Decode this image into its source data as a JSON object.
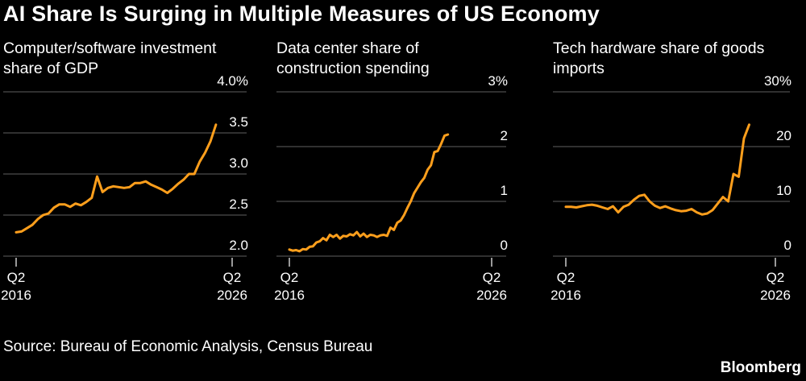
{
  "title": "AI Share Is Surging in Multiple Measures of US Economy",
  "source": "Source: Bureau of Economic Analysis, Census Bureau",
  "brand": "Bloomberg",
  "colors": {
    "background": "#000000",
    "line": "#ff9f1c",
    "grid": "#4d4d4d",
    "text": "#ffffff"
  },
  "chart_data": [
    {
      "type": "line",
      "title_lines": [
        "Computer/software investment",
        "share of GDP"
      ],
      "x_start": 2016.25,
      "x_step": 0.25,
      "x_ticks": [
        {
          "x": 2016.25,
          "label": [
            "Q2",
            "2016"
          ]
        },
        {
          "x": 2026.25,
          "label": [
            "Q2",
            "2026"
          ]
        }
      ],
      "ylim": [
        2.0,
        4.0
      ],
      "y_ticks": [
        {
          "v": 2.0,
          "label": "2.0"
        },
        {
          "v": 2.5,
          "label": "2.5"
        },
        {
          "v": 3.0,
          "label": "3.0"
        },
        {
          "v": 3.5,
          "label": "3.5"
        },
        {
          "v": 4.0,
          "label": "4.0%"
        }
      ],
      "grid": true,
      "series": [
        {
          "values": [
            2.29,
            2.3,
            2.34,
            2.38,
            2.45,
            2.5,
            2.52,
            2.59,
            2.63,
            2.63,
            2.6,
            2.64,
            2.62,
            2.66,
            2.71,
            2.97,
            2.78,
            2.83,
            2.85,
            2.84,
            2.83,
            2.84,
            2.89,
            2.89,
            2.91,
            2.87,
            2.84,
            2.81,
            2.77,
            2.82,
            2.88,
            2.93,
            3.0,
            3.0,
            3.15,
            3.26,
            3.4,
            3.6
          ]
        }
      ]
    },
    {
      "type": "line",
      "title_lines": [
        "Data center share of",
        "construction spending"
      ],
      "x_start": 2016.25,
      "x_step": 0.1667,
      "x_ticks": [
        {
          "x": 2016.25,
          "label": [
            "Q2",
            "2016"
          ]
        },
        {
          "x": 2026.25,
          "label": [
            "Q2",
            "2026"
          ]
        }
      ],
      "ylim": [
        0,
        3
      ],
      "y_ticks": [
        {
          "v": 0,
          "label": "0"
        },
        {
          "v": 1,
          "label": "1"
        },
        {
          "v": 2,
          "label": "2"
        },
        {
          "v": 3,
          "label": "3%"
        }
      ],
      "grid": true,
      "series": [
        {
          "values": [
            0.12,
            0.1,
            0.11,
            0.09,
            0.13,
            0.12,
            0.17,
            0.18,
            0.25,
            0.27,
            0.33,
            0.29,
            0.39,
            0.35,
            0.39,
            0.32,
            0.37,
            0.36,
            0.4,
            0.38,
            0.44,
            0.36,
            0.41,
            0.35,
            0.39,
            0.38,
            0.35,
            0.38,
            0.39,
            0.37,
            0.52,
            0.48,
            0.61,
            0.65,
            0.75,
            0.88,
            1.0,
            1.15,
            1.25,
            1.35,
            1.43,
            1.58,
            1.66,
            1.9,
            1.92,
            2.05,
            2.2,
            2.22
          ]
        }
      ]
    },
    {
      "type": "line",
      "title_lines": [
        "Tech hardware share of goods",
        "imports"
      ],
      "x_start": 2016.25,
      "x_step": 0.25,
      "x_ticks": [
        {
          "x": 2016.25,
          "label": [
            "Q2",
            "2016"
          ]
        },
        {
          "x": 2026.25,
          "label": [
            "Q2",
            "2026"
          ]
        }
      ],
      "ylim": [
        0,
        30
      ],
      "y_ticks": [
        {
          "v": 0,
          "label": "0"
        },
        {
          "v": 10,
          "label": "10"
        },
        {
          "v": 20,
          "label": "20"
        },
        {
          "v": 30,
          "label": "30%"
        }
      ],
      "grid": true,
      "series": [
        {
          "values": [
            9.0,
            9.0,
            8.9,
            9.1,
            9.3,
            9.4,
            9.2,
            8.9,
            8.6,
            9.1,
            8.0,
            9.0,
            9.4,
            10.3,
            11.0,
            11.2,
            10.0,
            9.2,
            8.8,
            9.1,
            8.7,
            8.4,
            8.2,
            8.3,
            8.6,
            8.0,
            7.6,
            7.8,
            8.4,
            9.6,
            10.8,
            10.0,
            15.0,
            14.5,
            21.5,
            24.0
          ]
        }
      ]
    }
  ]
}
